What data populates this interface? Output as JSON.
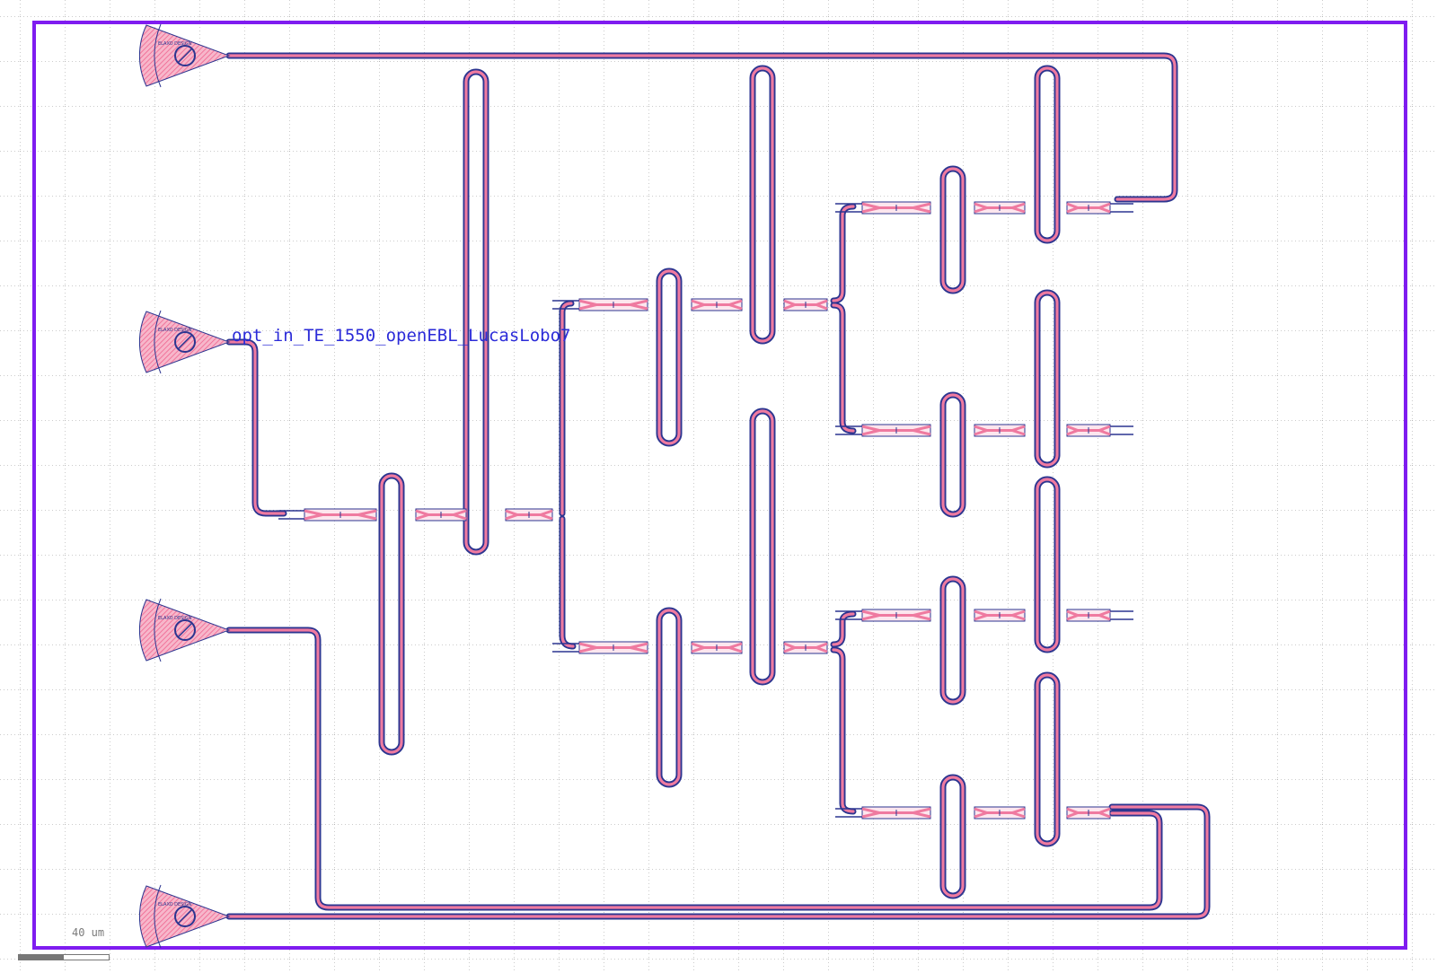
{
  "port_label": "opt_in_TE_1550_openEBL_LucasLobo7",
  "scale_bar": {
    "label": "40 um"
  },
  "grating_coupler": {
    "text": "ELAXO DESIGN"
  },
  "colors": {
    "background": "#ffffff",
    "grid_dots": "#9a9a9a",
    "floorplan_border": "#7f1cf0",
    "waveguide_fill": "#ef7aa0",
    "waveguide_edge": "#2c3590",
    "port_label": "#2b2bd8",
    "scale": "#777777"
  },
  "icons": [
    "grating-coupler-icon",
    "y-branch-icon",
    "waveguide-loop-icon"
  ]
}
